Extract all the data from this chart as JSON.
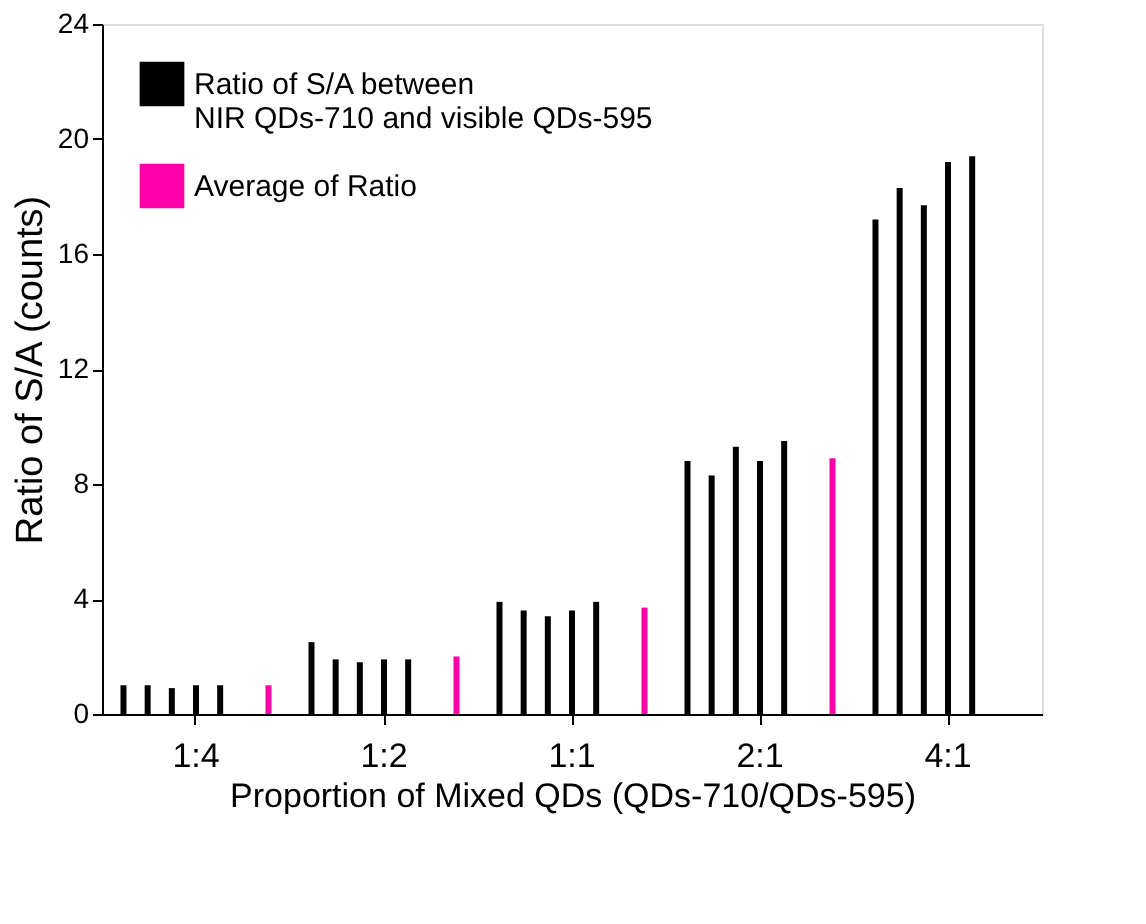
{
  "chart_data": {
    "type": "bar",
    "xlabel": "Proportion of Mixed QDs (QDs-710/QDs-595)",
    "ylabel": "Ratio of S/A (counts)",
    "categories": [
      "1:4",
      "1:2",
      "1:1",
      "2:1",
      "4:1"
    ],
    "series": [
      {
        "name": "Ratio of S/A between\nNIR QDs-710 and visible QDs-595",
        "color": "#000000",
        "values": [
          1.0,
          2.5,
          3.9,
          8.8,
          17.2
        ]
      },
      {
        "color": "#000000",
        "values": [
          1.0,
          1.9,
          3.6,
          8.3,
          18.3
        ]
      },
      {
        "color": "#000000",
        "values": [
          0.9,
          1.8,
          3.4,
          9.3,
          17.7
        ]
      },
      {
        "color": "#000000",
        "values": [
          1.0,
          1.9,
          3.6,
          8.8,
          19.2
        ]
      },
      {
        "color": "#000000",
        "values": [
          1.0,
          1.9,
          3.9,
          9.5,
          19.4
        ]
      },
      {
        "name": "Average of Ratio",
        "color": "#ff00aa",
        "values": [
          1.0,
          2.0,
          3.7,
          8.9,
          null
        ]
      }
    ],
    "ylim": [
      0,
      24
    ],
    "yticks": [
      0,
      4,
      8,
      12,
      16,
      20,
      24
    ],
    "grid": false,
    "legend": "top left"
  }
}
